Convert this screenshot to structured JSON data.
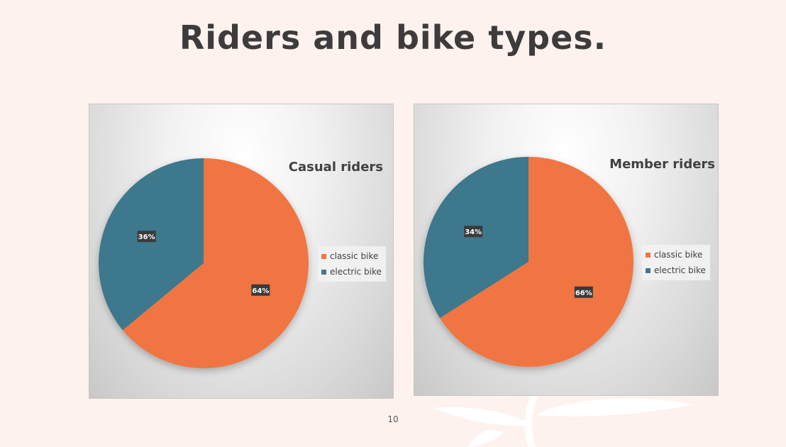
{
  "slide": {
    "title": "Riders and bike types.",
    "page_number": "10"
  },
  "colors": {
    "classic": "#f07542",
    "electric": "#3d788c",
    "label_bg": "#3a3a3a",
    "label_text": "#ffffff"
  },
  "chart_data": [
    {
      "type": "pie",
      "title": "Casual riders",
      "categories": [
        "classic bike",
        "electric bike"
      ],
      "values": [
        64,
        36
      ],
      "data_labels": [
        "64%",
        "36%"
      ],
      "start_angle_deg": 0,
      "direction": "clockwise",
      "legend_position": "right"
    },
    {
      "type": "pie",
      "title": "Member riders",
      "categories": [
        "classic bike",
        "electric bike"
      ],
      "values": [
        66,
        34
      ],
      "data_labels": [
        "66%",
        "34%"
      ],
      "start_angle_deg": 0,
      "direction": "clockwise",
      "legend_position": "right"
    }
  ]
}
